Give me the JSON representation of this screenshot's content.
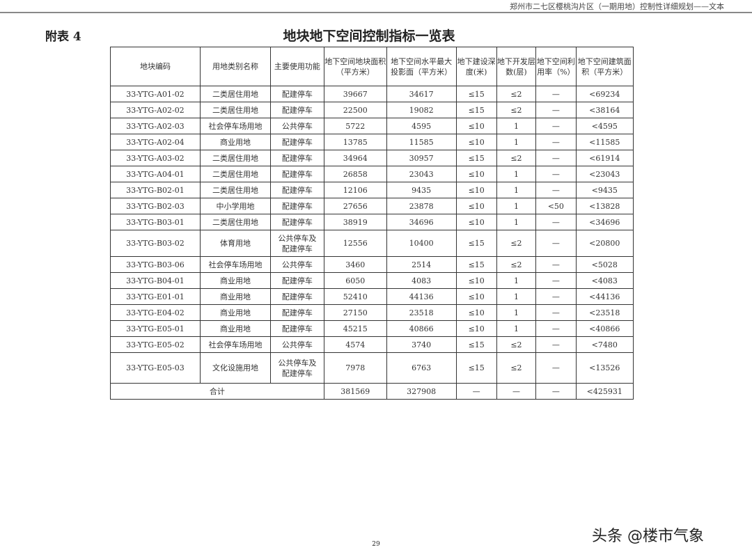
{
  "header": {
    "running_title": "郑州市二七区樱桃沟片区（一期用地）控制性详细规划——文本"
  },
  "appendix_label": "附表 4",
  "title": "地块地下空间控制指标一览表",
  "table": {
    "columns": [
      "地块编码",
      "用地类别名称",
      "主要使用功能",
      "地下空间地块面积（平方米）",
      "地下空间水平最大投影面（平方米）",
      "地下建设深度(米)",
      "地下开发层数(层)",
      "地下空间利用率（%）",
      "地下空间建筑面积（平方米）"
    ],
    "rows": [
      [
        "33-YTG-A01-02",
        "二类居住用地",
        "配建停车",
        "39667",
        "34617",
        "≤15",
        "≤2",
        "—",
        "<69234"
      ],
      [
        "33-YTG-A02-02",
        "二类居住用地",
        "配建停车",
        "22500",
        "19082",
        "≤15",
        "≤2",
        "—",
        "<38164"
      ],
      [
        "33-YTG-A02-03",
        "社会停车场用地",
        "公共停车",
        "5722",
        "4595",
        "≤10",
        "1",
        "—",
        "<4595"
      ],
      [
        "33-YTG-A02-04",
        "商业用地",
        "配建停车",
        "13785",
        "11585",
        "≤10",
        "1",
        "—",
        "<11585"
      ],
      [
        "33-YTG-A03-02",
        "二类居住用地",
        "配建停车",
        "34964",
        "30957",
        "≤15",
        "≤2",
        "—",
        "<61914"
      ],
      [
        "33-YTG-A04-01",
        "二类居住用地",
        "配建停车",
        "26858",
        "23043",
        "≤10",
        "1",
        "—",
        "<23043"
      ],
      [
        "33-YTG-B02-01",
        "二类居住用地",
        "配建停车",
        "12106",
        "9435",
        "≤10",
        "1",
        "—",
        "<9435"
      ],
      [
        "33-YTG-B02-03",
        "中小学用地",
        "配建停车",
        "27656",
        "23878",
        "≤10",
        "1",
        "<50",
        "<13828"
      ],
      [
        "33-YTG-B03-01",
        "二类居住用地",
        "配建停车",
        "38919",
        "34696",
        "≤10",
        "1",
        "—",
        "<34696"
      ],
      [
        "33-YTG-B03-02",
        "体育用地",
        "公共停车及配建停车",
        "12556",
        "10400",
        "≤15",
        "≤2",
        "—",
        "<20800"
      ],
      [
        "33-YTG-B03-06",
        "社会停车场用地",
        "公共停车",
        "3460",
        "2514",
        "≤15",
        "≤2",
        "—",
        "<5028"
      ],
      [
        "33-YTG-B04-01",
        "商业用地",
        "配建停车",
        "6050",
        "4083",
        "≤10",
        "1",
        "—",
        "<4083"
      ],
      [
        "33-YTG-E01-01",
        "商业用地",
        "配建停车",
        "52410",
        "44136",
        "≤10",
        "1",
        "—",
        "<44136"
      ],
      [
        "33-YTG-E04-02",
        "商业用地",
        "配建停车",
        "27150",
        "23518",
        "≤10",
        "1",
        "—",
        "<23518"
      ],
      [
        "33-YTG-E05-01",
        "商业用地",
        "配建停车",
        "45215",
        "40866",
        "≤10",
        "1",
        "—",
        "<40866"
      ],
      [
        "33-YTG-E05-02",
        "社会停车场用地",
        "公共停车",
        "4574",
        "3740",
        "≤15",
        "≤2",
        "—",
        "<7480"
      ],
      [
        "33-YTG-E05-03",
        "文化设施用地",
        "公共停车及配建停车",
        "7978",
        "6763",
        "≤15",
        "≤2",
        "—",
        "<13526"
      ]
    ],
    "total": {
      "label": "合计",
      "values": [
        "381569",
        "327908",
        "—",
        "—",
        "—",
        "<425931"
      ]
    }
  },
  "page_number": "29",
  "watermark": "头条 @楼市气象"
}
